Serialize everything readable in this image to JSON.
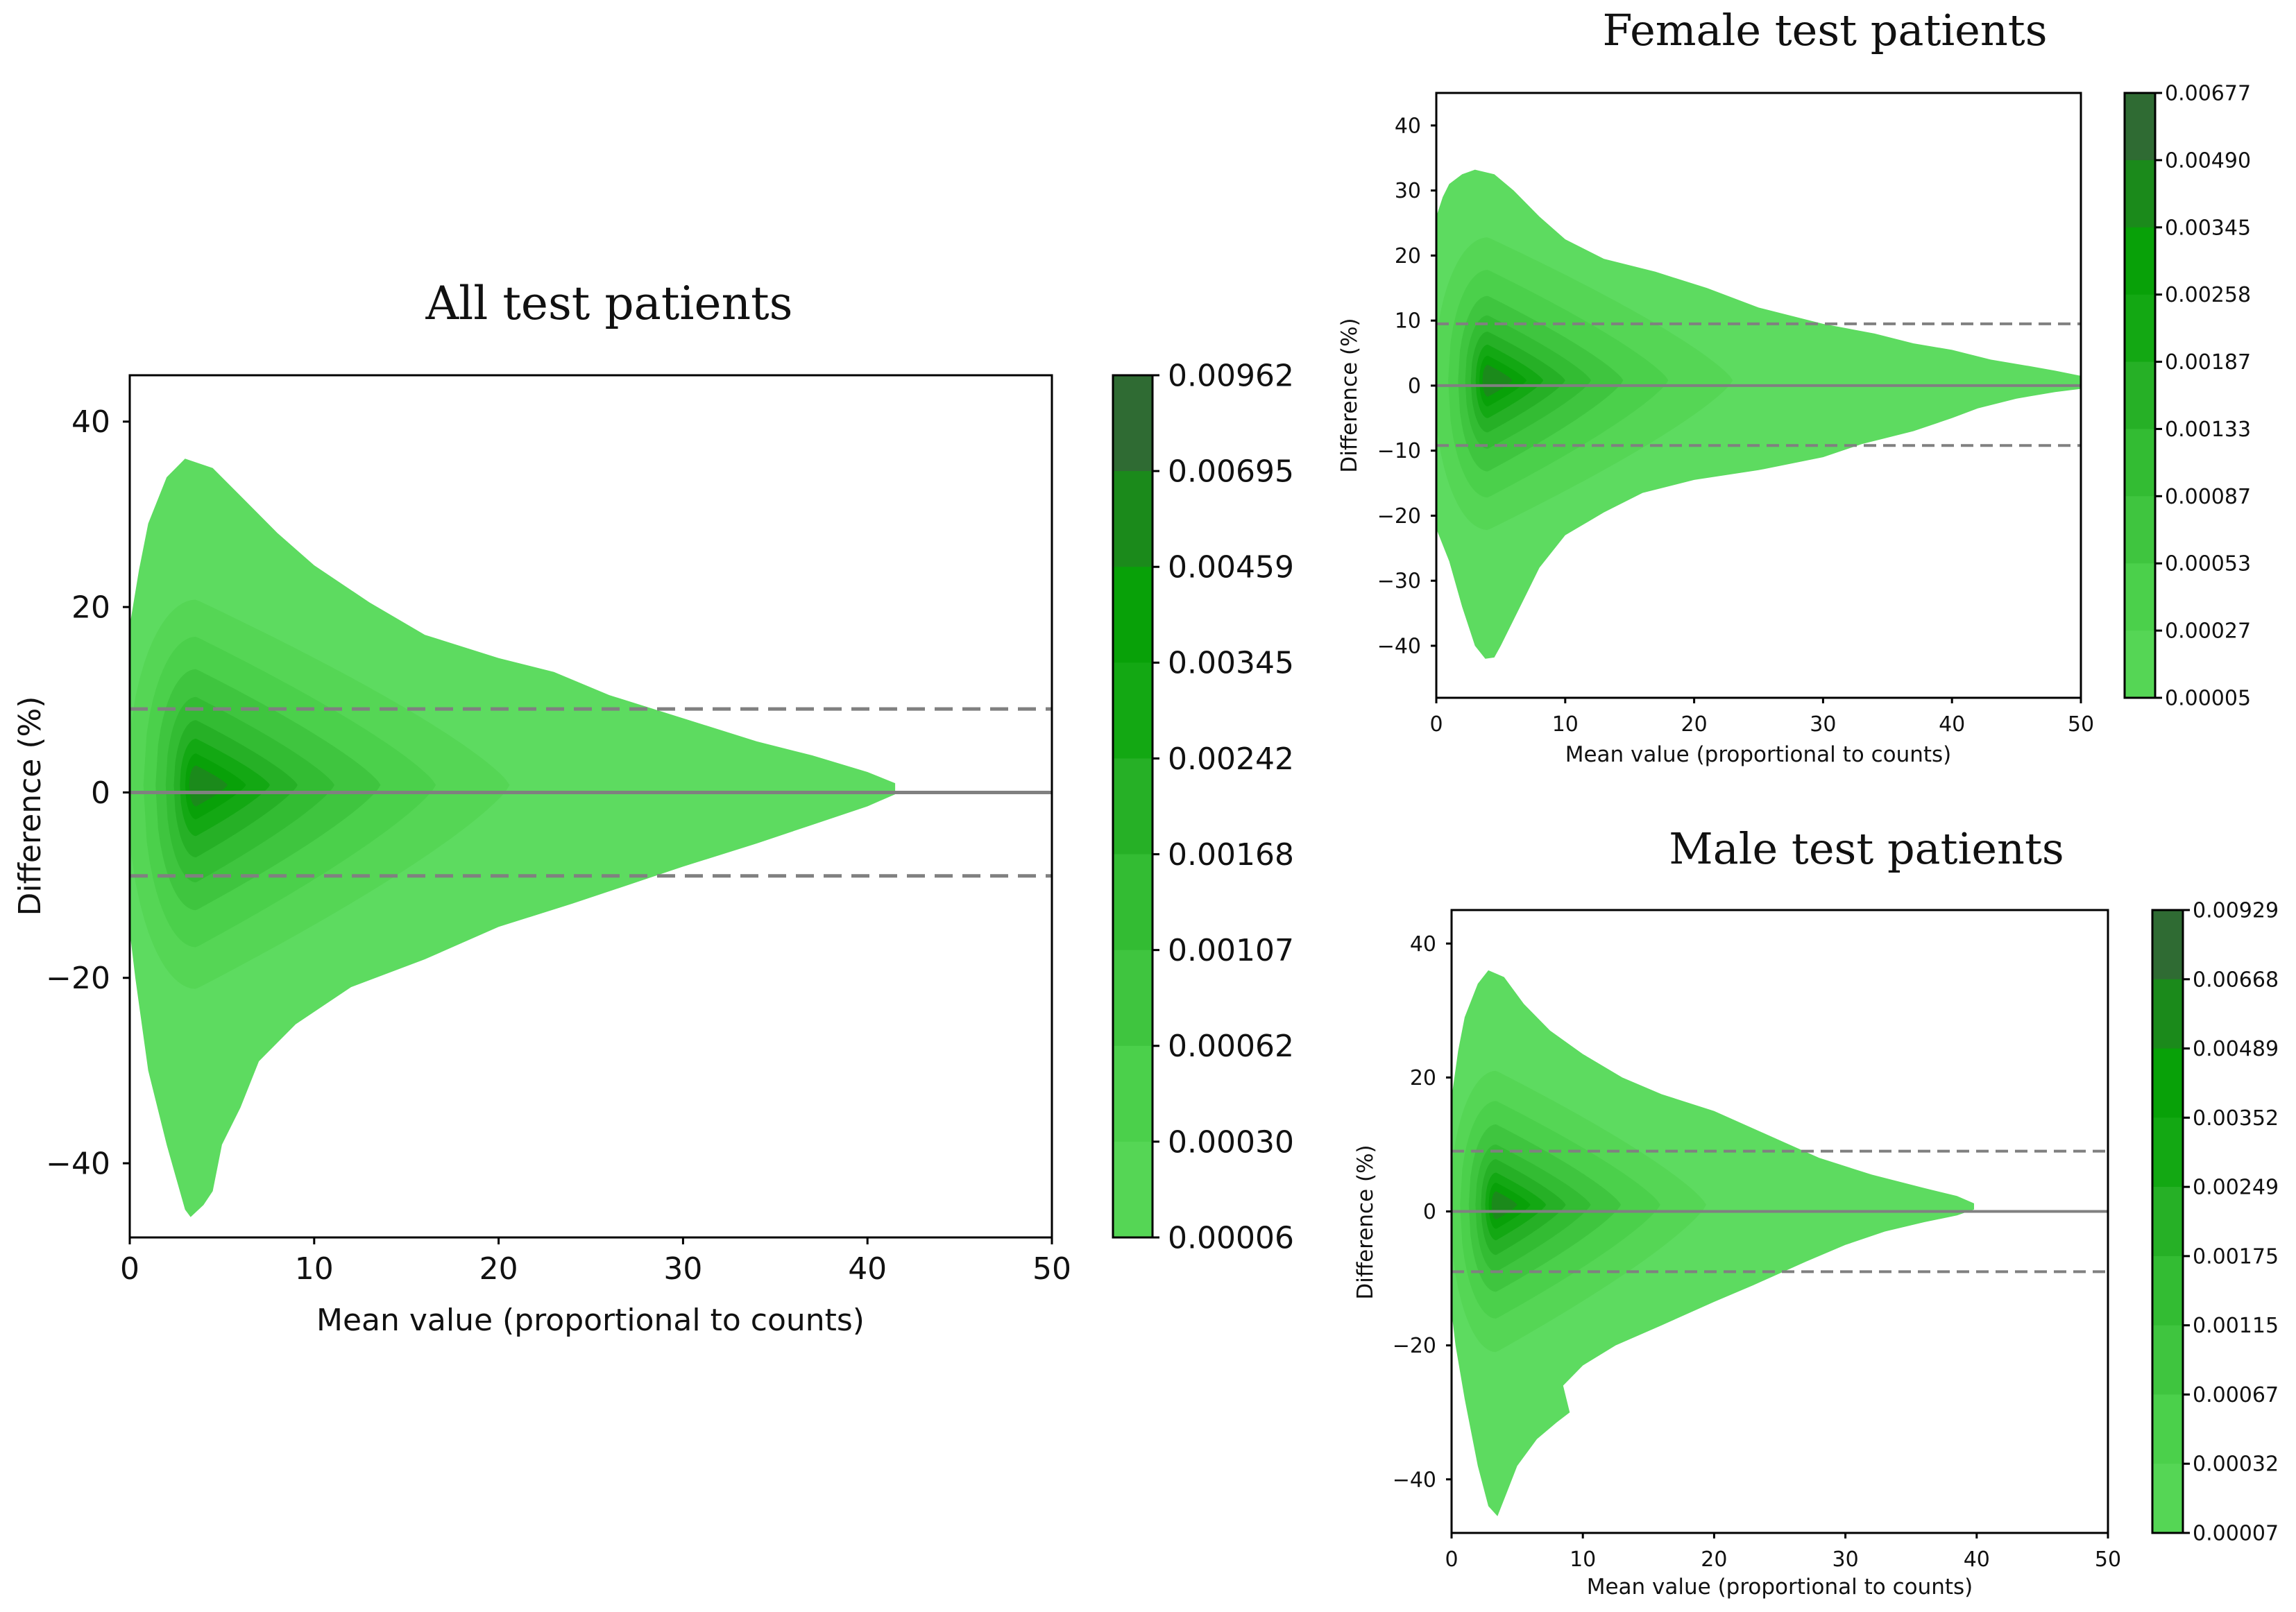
{
  "chart_data": [
    {
      "id": "all",
      "type": "contour",
      "title": "All test patients",
      "xlabel": "Mean value (proportional to counts)",
      "ylabel": "Difference (%)",
      "xlim": [
        0,
        50
      ],
      "ylim": [
        -48,
        45
      ],
      "xticks": [
        0,
        10,
        20,
        30,
        40,
        50
      ],
      "yticks": [
        -40,
        -20,
        0,
        20,
        40
      ],
      "mean_line": 0,
      "limits_of_agreement": [
        9,
        -9
      ],
      "peak": [
        3.6,
        0.8
      ],
      "outline": {
        "upper": [
          [
            0,
            18
          ],
          [
            0.5,
            24
          ],
          [
            1,
            29
          ],
          [
            2,
            34
          ],
          [
            3,
            36
          ],
          [
            4.5,
            35
          ],
          [
            6,
            32
          ],
          [
            8,
            28
          ],
          [
            10,
            24.5
          ],
          [
            13,
            20.5
          ],
          [
            16,
            17
          ],
          [
            20,
            14.5
          ],
          [
            23,
            13
          ],
          [
            26,
            10.5
          ],
          [
            30,
            8
          ],
          [
            34,
            5.5
          ],
          [
            37,
            4
          ],
          [
            40,
            2.2
          ],
          [
            41.5,
            1
          ]
        ],
        "lower": [
          [
            41.5,
            -0.2
          ],
          [
            40,
            -1.5
          ],
          [
            37,
            -3.5
          ],
          [
            34,
            -5.5
          ],
          [
            30,
            -8
          ],
          [
            27,
            -10
          ],
          [
            24,
            -12
          ],
          [
            20,
            -14.5
          ],
          [
            16,
            -18
          ],
          [
            12,
            -21
          ],
          [
            9,
            -25
          ],
          [
            7,
            -29
          ],
          [
            6,
            -34
          ],
          [
            5,
            -38
          ],
          [
            4.5,
            -43
          ],
          [
            4,
            -44.5
          ],
          [
            3.3,
            -45.8
          ],
          [
            3,
            -45
          ],
          [
            2,
            -38
          ],
          [
            1,
            -30
          ],
          [
            0.3,
            -20
          ],
          [
            0,
            -15
          ]
        ]
      },
      "levels": [
        {
          "cx": 3.6,
          "cy": 0.8,
          "a": 17.0,
          "up": 20.0,
          "dn": 22.0
        },
        {
          "cx": 3.6,
          "cy": 0.8,
          "a": 13.0,
          "up": 16.0,
          "dn": 17.5
        },
        {
          "cx": 3.6,
          "cy": 0.8,
          "a": 10.0,
          "up": 12.5,
          "dn": 13.5
        },
        {
          "cx": 3.6,
          "cy": 0.8,
          "a": 7.5,
          "up": 9.5,
          "dn": 10.5
        },
        {
          "cx": 3.6,
          "cy": 0.8,
          "a": 5.5,
          "up": 7.0,
          "dn": 7.8
        },
        {
          "cx": 3.6,
          "cy": 0.8,
          "a": 4.0,
          "up": 5.0,
          "dn": 5.5
        },
        {
          "cx": 3.6,
          "cy": 0.8,
          "a": 2.7,
          "up": 3.4,
          "dn": 3.7
        },
        {
          "cx": 3.6,
          "cy": 0.8,
          "a": 1.7,
          "up": 2.1,
          "dn": 2.3
        }
      ],
      "colorbar": {
        "labels": [
          "0.00962",
          "0.00695",
          "0.00459",
          "0.00345",
          "0.00242",
          "0.00168",
          "0.00107",
          "0.00062",
          "0.00030",
          "0.00006"
        ]
      }
    },
    {
      "id": "female",
      "type": "contour",
      "title": "Female test patients",
      "xlabel": "Mean value (proportional to counts)",
      "ylabel": "Difference (%)",
      "xlim": [
        0,
        50
      ],
      "ylim": [
        -48,
        45
      ],
      "xticks": [
        0,
        10,
        20,
        30,
        40,
        50
      ],
      "yticks": [
        -40,
        -30,
        -20,
        -10,
        0,
        10,
        20,
        30,
        40
      ],
      "mean_line": 0,
      "limits_of_agreement": [
        9.5,
        -9.2
      ],
      "peak": [
        4,
        0.8
      ],
      "outline": {
        "upper": [
          [
            0,
            26
          ],
          [
            0.5,
            29
          ],
          [
            1,
            31
          ],
          [
            2,
            32.5
          ],
          [
            3,
            33.2
          ],
          [
            4.5,
            32.5
          ],
          [
            6,
            30
          ],
          [
            8,
            26
          ],
          [
            10,
            22.5
          ],
          [
            13,
            19.5
          ],
          [
            17,
            17.5
          ],
          [
            21,
            15
          ],
          [
            25,
            12
          ],
          [
            30,
            9.5
          ],
          [
            34,
            8
          ],
          [
            37,
            6.5
          ],
          [
            40,
            5.5
          ],
          [
            43,
            4
          ],
          [
            46,
            3
          ],
          [
            48,
            2.3
          ],
          [
            50,
            1.5
          ]
        ],
        "lower": [
          [
            50,
            -0.5
          ],
          [
            48,
            -1
          ],
          [
            45,
            -2
          ],
          [
            42,
            -3.5
          ],
          [
            40,
            -5
          ],
          [
            37,
            -7
          ],
          [
            33,
            -9
          ],
          [
            30,
            -11
          ],
          [
            25,
            -13
          ],
          [
            20,
            -14.5
          ],
          [
            16,
            -16.5
          ],
          [
            13,
            -19.5
          ],
          [
            10,
            -23
          ],
          [
            8,
            -28
          ],
          [
            7,
            -32
          ],
          [
            6,
            -36
          ],
          [
            5,
            -40
          ],
          [
            4.5,
            -41.8
          ],
          [
            3.8,
            -42
          ],
          [
            3,
            -40
          ],
          [
            2,
            -34
          ],
          [
            1,
            -27
          ],
          [
            0,
            -22
          ]
        ]
      },
      "levels": [
        {
          "cx": 4,
          "cy": 0.8,
          "a": 19.0,
          "up": 22.0,
          "dn": 23.0
        },
        {
          "cx": 4,
          "cy": 0.8,
          "a": 14.0,
          "up": 17.0,
          "dn": 18.0
        },
        {
          "cx": 4,
          "cy": 0.8,
          "a": 10.5,
          "up": 13.0,
          "dn": 14.0
        },
        {
          "cx": 4,
          "cy": 0.8,
          "a": 8.0,
          "up": 10.0,
          "dn": 10.5
        },
        {
          "cx": 4,
          "cy": 0.8,
          "a": 6.0,
          "up": 7.5,
          "dn": 8.0
        },
        {
          "cx": 4,
          "cy": 0.8,
          "a": 4.3,
          "up": 5.5,
          "dn": 5.8
        },
        {
          "cx": 4,
          "cy": 0.8,
          "a": 3.0,
          "up": 3.8,
          "dn": 4.0
        },
        {
          "cx": 4,
          "cy": 0.8,
          "a": 1.9,
          "up": 2.4,
          "dn": 2.5
        }
      ],
      "colorbar": {
        "labels": [
          "0.00677",
          "0.00490",
          "0.00345",
          "0.00258",
          "0.00187",
          "0.00133",
          "0.00087",
          "0.00053",
          "0.00027",
          "0.00005"
        ]
      }
    },
    {
      "id": "male",
      "type": "contour",
      "title": "Male test patients",
      "xlabel": "Mean value (proportional to counts)",
      "ylabel": "Difference (%)",
      "xlim": [
        0,
        50
      ],
      "ylim": [
        -48,
        45
      ],
      "xticks": [
        0,
        10,
        20,
        30,
        40,
        50
      ],
      "yticks": [
        -40,
        -20,
        0,
        20,
        40
      ],
      "mean_line": 0,
      "limits_of_agreement": [
        9,
        -9
      ],
      "peak": [
        3.4,
        1
      ],
      "outline": {
        "upper": [
          [
            0,
            17
          ],
          [
            0.5,
            24
          ],
          [
            1,
            29
          ],
          [
            2,
            34
          ],
          [
            2.8,
            36
          ],
          [
            4,
            35
          ],
          [
            5.5,
            31
          ],
          [
            7.5,
            27
          ],
          [
            10,
            23.5
          ],
          [
            13,
            20
          ],
          [
            16,
            17.5
          ],
          [
            20,
            15
          ],
          [
            24,
            11.5
          ],
          [
            28,
            8
          ],
          [
            32,
            5.5
          ],
          [
            36,
            3.5
          ],
          [
            38.5,
            2.3
          ],
          [
            39.8,
            1.2
          ]
        ],
        "lower": [
          [
            39.8,
            0.3
          ],
          [
            38.5,
            -0.6
          ],
          [
            36,
            -1.6
          ],
          [
            33,
            -3
          ],
          [
            30,
            -5
          ],
          [
            27,
            -7.5
          ],
          [
            23,
            -11
          ],
          [
            20,
            -13.5
          ],
          [
            16,
            -17
          ],
          [
            12.5,
            -20
          ],
          [
            10,
            -23
          ],
          [
            8.5,
            -26
          ],
          [
            9,
            -30
          ],
          [
            8,
            -31.5
          ],
          [
            6.5,
            -34
          ],
          [
            5,
            -38
          ],
          [
            4.2,
            -42
          ],
          [
            3.5,
            -45.5
          ],
          [
            2.8,
            -44
          ],
          [
            2,
            -38
          ],
          [
            1,
            -28
          ],
          [
            0.3,
            -20
          ],
          [
            0,
            -15
          ]
        ]
      },
      "levels": [
        {
          "cx": 3.4,
          "cy": 1.0,
          "a": 16.0,
          "up": 20.0,
          "dn": 22.0
        },
        {
          "cx": 3.4,
          "cy": 1.0,
          "a": 12.5,
          "up": 15.5,
          "dn": 17.0
        },
        {
          "cx": 3.4,
          "cy": 1.0,
          "a": 9.5,
          "up": 12.0,
          "dn": 13.0
        },
        {
          "cx": 3.4,
          "cy": 1.0,
          "a": 7.2,
          "up": 9.0,
          "dn": 10.0
        },
        {
          "cx": 3.4,
          "cy": 1.0,
          "a": 5.3,
          "up": 6.8,
          "dn": 7.5
        },
        {
          "cx": 3.4,
          "cy": 1.0,
          "a": 3.8,
          "up": 4.8,
          "dn": 5.3
        },
        {
          "cx": 3.4,
          "cy": 1.0,
          "a": 2.6,
          "up": 3.3,
          "dn": 3.6
        },
        {
          "cx": 3.4,
          "cy": 1.0,
          "a": 1.6,
          "up": 2.0,
          "dn": 2.2
        }
      ],
      "colorbar": {
        "labels": [
          "0.00929",
          "0.00668",
          "0.00489",
          "0.00352",
          "0.00249",
          "0.00175",
          "0.00115",
          "0.00067",
          "0.00032",
          "0.00007"
        ]
      }
    }
  ],
  "colors": {
    "levels": [
      "#5ddb60",
      "#55d655",
      "#4bd04b",
      "#3fc53f",
      "#33bc33",
      "#26b026",
      "#13a813",
      "#08a108",
      "#1b8a1b",
      "#2f6b33"
    ],
    "reference_line": "#808080",
    "axes": "#000000"
  }
}
